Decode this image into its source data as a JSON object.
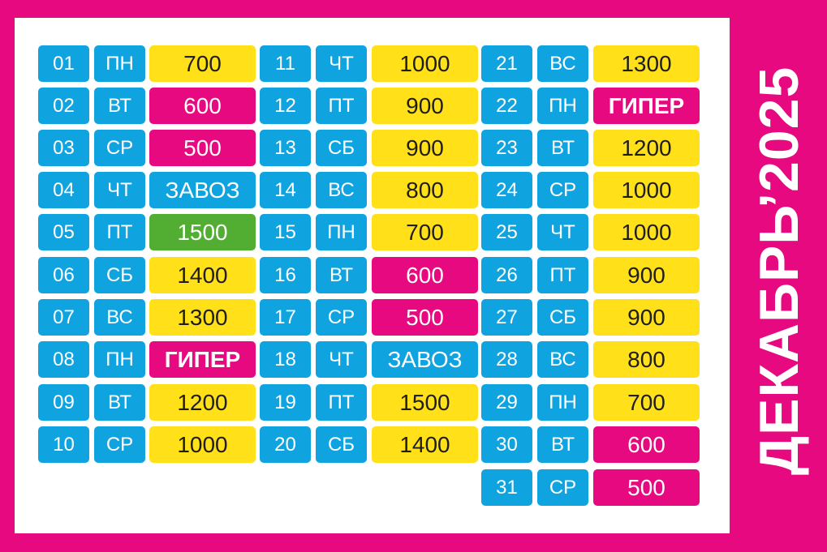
{
  "title": "ДЕКАБРЬ’2025",
  "colors": {
    "background": "#e6097f",
    "blue": "#0fa3e0",
    "yellow": "#ffe019",
    "magenta": "#e6097f",
    "green": "#52ae32"
  },
  "days": [
    {
      "num": "01",
      "dow": "ПН",
      "value": "700",
      "color": "yellow",
      "bold": false
    },
    {
      "num": "02",
      "dow": "ВТ",
      "value": "600",
      "color": "magenta",
      "bold": false
    },
    {
      "num": "03",
      "dow": "СР",
      "value": "500",
      "color": "magenta",
      "bold": false
    },
    {
      "num": "04",
      "dow": "ЧТ",
      "value": "ЗАВОЗ",
      "color": "blue",
      "bold": false
    },
    {
      "num": "05",
      "dow": "ПТ",
      "value": "1500",
      "color": "green",
      "bold": false
    },
    {
      "num": "06",
      "dow": "СБ",
      "value": "1400",
      "color": "yellow",
      "bold": false
    },
    {
      "num": "07",
      "dow": "ВС",
      "value": "1300",
      "color": "yellow",
      "bold": false
    },
    {
      "num": "08",
      "dow": "ПН",
      "value": "ГИПЕР",
      "color": "magenta",
      "bold": true
    },
    {
      "num": "09",
      "dow": "ВТ",
      "value": "1200",
      "color": "yellow",
      "bold": false
    },
    {
      "num": "10",
      "dow": "СР",
      "value": "1000",
      "color": "yellow",
      "bold": false
    },
    {
      "num": "11",
      "dow": "ЧТ",
      "value": "1000",
      "color": "yellow",
      "bold": false
    },
    {
      "num": "12",
      "dow": "ПТ",
      "value": "900",
      "color": "yellow",
      "bold": false
    },
    {
      "num": "13",
      "dow": "СБ",
      "value": "900",
      "color": "yellow",
      "bold": false
    },
    {
      "num": "14",
      "dow": "ВС",
      "value": "800",
      "color": "yellow",
      "bold": false
    },
    {
      "num": "15",
      "dow": "ПН",
      "value": "700",
      "color": "yellow",
      "bold": false
    },
    {
      "num": "16",
      "dow": "ВТ",
      "value": "600",
      "color": "magenta",
      "bold": false
    },
    {
      "num": "17",
      "dow": "СР",
      "value": "500",
      "color": "magenta",
      "bold": false
    },
    {
      "num": "18",
      "dow": "ЧТ",
      "value": "ЗАВОЗ",
      "color": "blue",
      "bold": false
    },
    {
      "num": "19",
      "dow": "ПТ",
      "value": "1500",
      "color": "yellow",
      "bold": false
    },
    {
      "num": "20",
      "dow": "СБ",
      "value": "1400",
      "color": "yellow",
      "bold": false
    },
    {
      "num": "21",
      "dow": "ВС",
      "value": "1300",
      "color": "yellow",
      "bold": false
    },
    {
      "num": "22",
      "dow": "ПН",
      "value": "ГИПЕР",
      "color": "magenta",
      "bold": true
    },
    {
      "num": "23",
      "dow": "ВТ",
      "value": "1200",
      "color": "yellow",
      "bold": false
    },
    {
      "num": "24",
      "dow": "СР",
      "value": "1000",
      "color": "yellow",
      "bold": false
    },
    {
      "num": "25",
      "dow": "ЧТ",
      "value": "1000",
      "color": "yellow",
      "bold": false
    },
    {
      "num": "26",
      "dow": "ПТ",
      "value": "900",
      "color": "yellow",
      "bold": false
    },
    {
      "num": "27",
      "dow": "СБ",
      "value": "900",
      "color": "yellow",
      "bold": false
    },
    {
      "num": "28",
      "dow": "ВС",
      "value": "800",
      "color": "yellow",
      "bold": false
    },
    {
      "num": "29",
      "dow": "ПН",
      "value": "700",
      "color": "yellow",
      "bold": false
    },
    {
      "num": "30",
      "dow": "ВТ",
      "value": "600",
      "color": "magenta",
      "bold": false
    },
    {
      "num": "31",
      "dow": "СР",
      "value": "500",
      "color": "magenta",
      "bold": false
    }
  ]
}
